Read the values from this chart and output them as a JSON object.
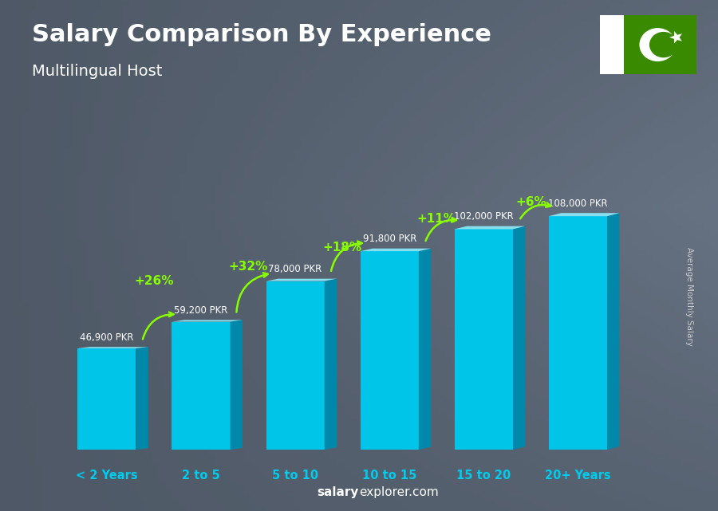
{
  "title": "Salary Comparison By Experience",
  "subtitle": "Multilingual Host",
  "categories": [
    "< 2 Years",
    "2 to 5",
    "5 to 10",
    "10 to 15",
    "15 to 20",
    "20+ Years"
  ],
  "values": [
    46900,
    59200,
    78000,
    91800,
    102000,
    108000
  ],
  "labels": [
    "46,900 PKR",
    "59,200 PKR",
    "78,000 PKR",
    "91,800 PKR",
    "102,000 PKR",
    "108,000 PKR"
  ],
  "pct_changes": [
    "+26%",
    "+32%",
    "+18%",
    "+11%",
    "+6%"
  ],
  "bar_face_color": "#00C5E8",
  "bar_side_color": "#0088AA",
  "bar_top_color": "#88DDEE",
  "bg_color": "#6a7a8a",
  "title_color": "#FFFFFF",
  "subtitle_color": "#FFFFFF",
  "label_color": "#FFFFFF",
  "pct_color": "#88FF00",
  "xcat_color": "#00CCEE",
  "footer_salary": "salary",
  "footer_explorer": "explorer",
  "footer_com": ".com",
  "ylabel_text": "Average Monthly Salary",
  "ylim": [
    0,
    130000
  ],
  "flag_green": "#3a8a00",
  "flag_white": "#FFFFFF"
}
